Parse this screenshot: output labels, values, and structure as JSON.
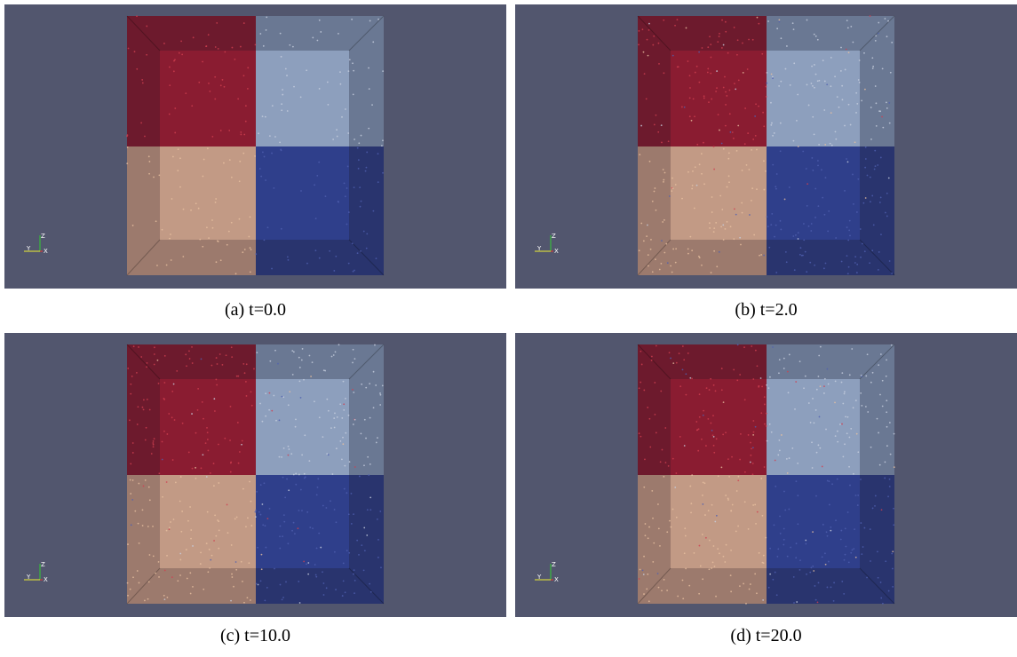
{
  "figure": {
    "panels": [
      {
        "caption": "(a) t=0.0"
      },
      {
        "caption": "(b) t=2.0"
      },
      {
        "caption": "(c) t=10.0"
      },
      {
        "caption": "(d) t=20.0"
      }
    ],
    "axis_labels": {
      "z": "Z",
      "y": "Y",
      "x": "X"
    }
  }
}
